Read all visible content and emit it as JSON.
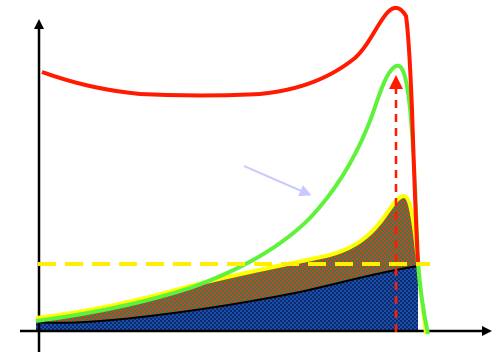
{
  "diagram": {
    "colors": {
      "background": "#ffffff",
      "axes": "#000000",
      "red_curve": "#ff1a00",
      "green_curve": "#5ef23a",
      "yellow_curve": "#ffff00",
      "black_curve": "#000000",
      "dashed_yellow_line": "#ffee00",
      "dashed_red_arrow": "#ff1a00",
      "faint_arrow": "#c8c8ff",
      "blue_checker_light": "#1d4fa8",
      "blue_checker_dark": "#0a2c6e",
      "brown_fill": "#8a5a3c",
      "brown_checker_light": "#c2452d",
      "brown_checker_dark": "#3f7a40"
    },
    "elements": [
      "y-axis-arrow",
      "x-axis-arrow",
      "red-curve",
      "green-curve",
      "yellow-curve",
      "black-curve",
      "blue-checkered-region",
      "brown-checkered-region",
      "yellow-dashed-line",
      "red-dashed-arrow",
      "faint-arrow"
    ]
  }
}
